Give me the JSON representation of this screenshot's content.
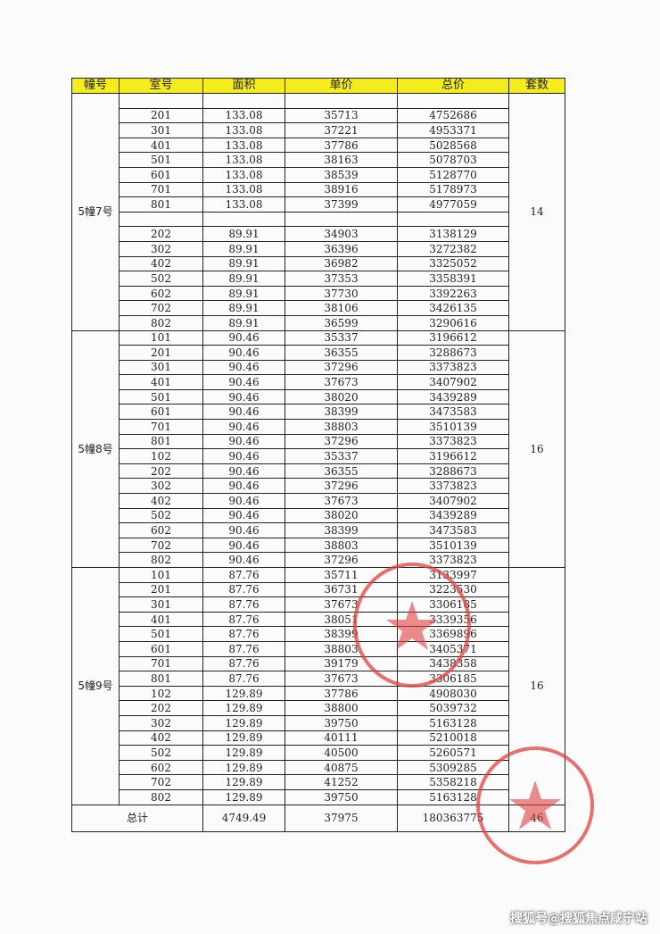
{
  "table": {
    "headers": [
      "幢号",
      "室号",
      "面积",
      "单价",
      "总价",
      "套数"
    ],
    "groups": [
      {
        "building": "5幢7号",
        "count": "14",
        "rows": [
          [
            "",
            "",
            "",
            ""
          ],
          [
            "201",
            "133.08",
            "35713",
            "4752686"
          ],
          [
            "301",
            "133.08",
            "37221",
            "4953371"
          ],
          [
            "401",
            "133.08",
            "37786",
            "5028568"
          ],
          [
            "501",
            "133.08",
            "38163",
            "5078703"
          ],
          [
            "601",
            "133.08",
            "38539",
            "5128770"
          ],
          [
            "701",
            "133.08",
            "38916",
            "5178973"
          ],
          [
            "801",
            "133.08",
            "37399",
            "4977059"
          ],
          [
            "",
            "",
            "",
            ""
          ],
          [
            "202",
            "89.91",
            "34903",
            "3138129"
          ],
          [
            "302",
            "89.91",
            "36396",
            "3272382"
          ],
          [
            "402",
            "89.91",
            "36982",
            "3325052"
          ],
          [
            "502",
            "89.91",
            "37353",
            "3358391"
          ],
          [
            "602",
            "89.91",
            "37730",
            "3392263"
          ],
          [
            "702",
            "89.91",
            "38106",
            "3426135"
          ],
          [
            "802",
            "89.91",
            "36599",
            "3290616"
          ]
        ]
      },
      {
        "building": "5幢8号",
        "count": "16",
        "rows": [
          [
            "101",
            "90.46",
            "35337",
            "3196612"
          ],
          [
            "201",
            "90.46",
            "36355",
            "3288673"
          ],
          [
            "301",
            "90.46",
            "37296",
            "3373823"
          ],
          [
            "401",
            "90.46",
            "37673",
            "3407902"
          ],
          [
            "501",
            "90.46",
            "38020",
            "3439289"
          ],
          [
            "601",
            "90.46",
            "38399",
            "3473583"
          ],
          [
            "701",
            "90.46",
            "38803",
            "3510139"
          ],
          [
            "801",
            "90.46",
            "37296",
            "3373823"
          ],
          [
            "102",
            "90.46",
            "35337",
            "3196612"
          ],
          [
            "202",
            "90.46",
            "36355",
            "3288673"
          ],
          [
            "302",
            "90.46",
            "37296",
            "3373823"
          ],
          [
            "402",
            "90.46",
            "37673",
            "3407902"
          ],
          [
            "502",
            "90.46",
            "38020",
            "3439289"
          ],
          [
            "602",
            "90.46",
            "38399",
            "3473583"
          ],
          [
            "702",
            "90.46",
            "38803",
            "3510139"
          ],
          [
            "802",
            "90.46",
            "37296",
            "3373823"
          ]
        ]
      },
      {
        "building": "5幢9号",
        "count": "16",
        "rows": [
          [
            "101",
            "87.76",
            "35711",
            "3133997"
          ],
          [
            "201",
            "87.76",
            "36731",
            "3223530"
          ],
          [
            "301",
            "87.76",
            "37673",
            "3306185"
          ],
          [
            "401",
            "87.76",
            "38051",
            "3339356"
          ],
          [
            "501",
            "87.76",
            "38399",
            "3369896"
          ],
          [
            "601",
            "87.76",
            "38803",
            "3405371"
          ],
          [
            "701",
            "87.76",
            "39179",
            "3438358"
          ],
          [
            "801",
            "87.76",
            "37673",
            "3306185"
          ],
          [
            "102",
            "129.89",
            "37786",
            "4908030"
          ],
          [
            "202",
            "129.89",
            "38800",
            "5039732"
          ],
          [
            "302",
            "129.89",
            "39750",
            "5163128"
          ],
          [
            "402",
            "129.89",
            "40111",
            "5210018"
          ],
          [
            "502",
            "129.89",
            "40500",
            "5260571"
          ],
          [
            "602",
            "129.89",
            "40875",
            "5309285"
          ],
          [
            "702",
            "129.89",
            "41252",
            "5358218"
          ],
          [
            "802",
            "129.89",
            "39750",
            "5163128"
          ]
        ]
      }
    ],
    "total": {
      "label": "总计",
      "area": "4749.49",
      "unit_price": "37975",
      "total_price": "180363775",
      "count": "46"
    }
  },
  "colors": {
    "header_bg": "#f4ec1c",
    "stamp": "#e0403f"
  },
  "watermark": "搜狐号@搜狐焦点咸宁站"
}
